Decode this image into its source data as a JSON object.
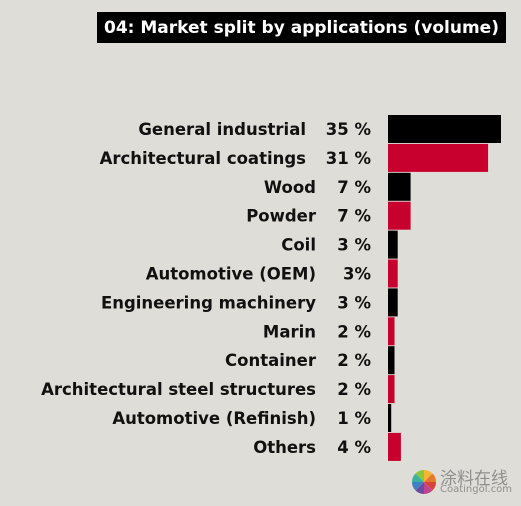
{
  "chart_data": {
    "type": "bar",
    "orientation": "horizontal",
    "title": "04: Market split by applications (volume)",
    "categories": [
      "General industrial",
      "Architectural coatings",
      "Wood",
      "Powder",
      "Coil",
      "Automotive (OEM)",
      "Engineering machinery",
      "Marin",
      "Container",
      "Architectural steel structures",
      "Automotive (Refinish)",
      "Others"
    ],
    "values": [
      35,
      31,
      7,
      7,
      3,
      3,
      3,
      2,
      2,
      2,
      1,
      4
    ],
    "value_labels": [
      "35 %",
      "31 %",
      "7 %",
      "7 %",
      "3 %",
      "3%",
      "3 %",
      "2 %",
      "2 %",
      "2 %",
      "1 %",
      "4 %"
    ],
    "unit": "%",
    "xlim": [
      0,
      35
    ],
    "grid": false,
    "legend": "none",
    "colors": [
      "#000000",
      "#c8002d"
    ]
  },
  "watermark": {
    "name_cn": "涂料在线",
    "site": "Coatingol.com"
  }
}
